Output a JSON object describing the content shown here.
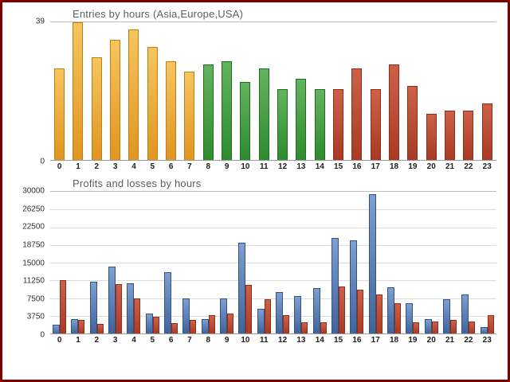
{
  "frame": {
    "border_color": "#7b0000",
    "background": "#ffffff"
  },
  "chart_data": [
    {
      "type": "bar",
      "title": "Entries by hours (Asia,Europe,USA)",
      "xlabel": "",
      "ylabel": "",
      "ylim": [
        0,
        39
      ],
      "yticks": [
        0,
        39
      ],
      "grid": "top-and-baseline-only",
      "legend_position": "none",
      "categories": [
        "0",
        "1",
        "2",
        "3",
        "4",
        "5",
        "6",
        "7",
        "8",
        "9",
        "10",
        "11",
        "12",
        "13",
        "14",
        "15",
        "16",
        "17",
        "18",
        "19",
        "20",
        "21",
        "22",
        "23"
      ],
      "values": [
        26,
        39,
        29,
        34,
        37,
        32,
        28,
        25,
        27,
        28,
        22,
        26,
        20,
        23,
        20,
        20,
        26,
        20,
        27,
        21,
        13,
        14,
        14,
        16
      ],
      "segments": [
        {
          "label": "Asia",
          "from": 0,
          "to": 7,
          "color_top": "#f6c55f",
          "color_bottom": "#e0951f",
          "color_border": "#c07d14"
        },
        {
          "label": "Europe",
          "from": 8,
          "to": 14,
          "color_top": "#63b35e",
          "color_bottom": "#2e8b2e",
          "color_border": "#1f6e1f"
        },
        {
          "label": "USA",
          "from": 15,
          "to": 23,
          "color_top": "#cc6148",
          "color_bottom": "#a93a24",
          "color_border": "#8d2d1a"
        }
      ]
    },
    {
      "type": "bar",
      "title": "Profits and losses by hours",
      "xlabel": "",
      "ylabel": "",
      "ylim": [
        0,
        30000
      ],
      "yticks": [
        0,
        3750,
        7500,
        11250,
        15000,
        18750,
        22500,
        26250,
        30000
      ],
      "grid": "horizontal",
      "legend_position": "none",
      "categories": [
        "0",
        "1",
        "2",
        "3",
        "4",
        "5",
        "6",
        "7",
        "8",
        "9",
        "10",
        "11",
        "12",
        "13",
        "14",
        "15",
        "16",
        "17",
        "18",
        "19",
        "20",
        "21",
        "22",
        "23"
      ],
      "series": [
        {
          "name": "Profits",
          "color_top": "#7f9ed2",
          "color_bottom": "#3f639b",
          "color_border": "#32527f",
          "values": [
            1800,
            3000,
            11000,
            14200,
            10700,
            4200,
            13000,
            7500,
            3000,
            7500,
            19200,
            5200,
            8700,
            8000,
            9600,
            20200,
            19700,
            29500,
            9700,
            6400,
            3000,
            7200,
            8200,
            1300
          ]
        },
        {
          "name": "Losses",
          "color_top": "#cc6148",
          "color_bottom": "#a93a24",
          "color_border": "#8d2d1a",
          "values": [
            11250,
            2800,
            2000,
            10500,
            7400,
            3500,
            2200,
            2800,
            3800,
            4300,
            10300,
            7200,
            3800,
            2400,
            2400,
            10000,
            9200,
            8200,
            6400,
            2300,
            2600,
            2900,
            2600,
            3800
          ]
        }
      ]
    }
  ]
}
